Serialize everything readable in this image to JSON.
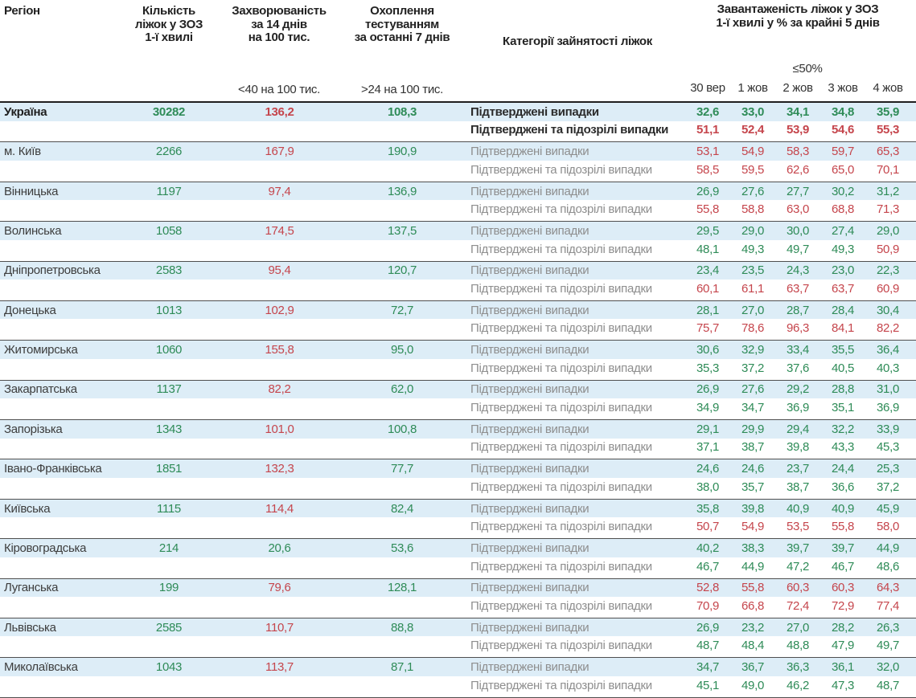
{
  "header": {
    "region": "Регіон",
    "beds_lines": [
      "Кількість",
      "ліжок у ЗОЗ",
      "1-ї хвилі"
    ],
    "incidence_lines": [
      "Захворюваність",
      "за 14 днів",
      "на 100 тис."
    ],
    "testing_lines": [
      "Охоплення",
      "тестуванням",
      "за останні 7 днів"
    ],
    "categories": "Категорії зайнятості ліжок",
    "occupancy_lines": [
      "Завантаженість ліжок у ЗОЗ",
      "1-ї хвилі у % за крайні 5 днів"
    ],
    "incidence_threshold_label": "<40 на 100 тис.",
    "testing_threshold_label": ">24 на 100 тис.",
    "occupancy_threshold_label": "≤50%",
    "dates": [
      "30 вер",
      "1 жов",
      "2 жов",
      "3 жов",
      "4 жов"
    ]
  },
  "row_labels": {
    "confirmed": "Підтверджені випадки",
    "suspected": "Підтверджені та підозрілі випадки"
  },
  "thresholds": {
    "incidence_red": 40,
    "testing_green": 24,
    "occupancy_green": 50
  },
  "colors": {
    "green": "#2e8b57",
    "red": "#c5454c",
    "row_blue": "#ddedf7"
  },
  "rows": [
    {
      "region": "Україна",
      "bold": true,
      "beds": "30282",
      "incidence": "136,2",
      "testing": "108,3",
      "confirmed": [
        "32,6",
        "33,0",
        "34,1",
        "34,8",
        "35,9"
      ],
      "suspected": [
        "51,1",
        "52,4",
        "53,9",
        "54,6",
        "55,3"
      ]
    },
    {
      "region": "м. Київ",
      "bold": false,
      "beds": "2266",
      "incidence": "167,9",
      "testing": "190,9",
      "confirmed": [
        "53,1",
        "54,9",
        "58,3",
        "59,7",
        "65,3"
      ],
      "suspected": [
        "58,5",
        "59,5",
        "62,6",
        "65,0",
        "70,1"
      ]
    },
    {
      "region": "Вінницька",
      "bold": false,
      "beds": "1197",
      "incidence": "97,4",
      "testing": "136,9",
      "confirmed": [
        "26,9",
        "27,6",
        "27,7",
        "30,2",
        "31,2"
      ],
      "suspected": [
        "55,8",
        "58,8",
        "63,0",
        "68,8",
        "71,3"
      ]
    },
    {
      "region": "Волинська",
      "bold": false,
      "beds": "1058",
      "incidence": "174,5",
      "testing": "137,5",
      "confirmed": [
        "29,5",
        "29,0",
        "30,0",
        "27,4",
        "29,0"
      ],
      "suspected": [
        "48,1",
        "49,3",
        "49,7",
        "49,3",
        "50,9"
      ]
    },
    {
      "region": "Дніпропетровська",
      "bold": false,
      "beds": "2583",
      "incidence": "95,4",
      "testing": "120,7",
      "confirmed": [
        "23,4",
        "23,5",
        "24,3",
        "23,0",
        "22,3"
      ],
      "suspected": [
        "60,1",
        "61,1",
        "63,7",
        "63,7",
        "60,9"
      ]
    },
    {
      "region": "Донецька",
      "bold": false,
      "beds": "1013",
      "incidence": "102,9",
      "testing": "72,7",
      "confirmed": [
        "28,1",
        "27,0",
        "28,7",
        "28,4",
        "30,4"
      ],
      "suspected": [
        "75,7",
        "78,6",
        "96,3",
        "84,1",
        "82,2"
      ]
    },
    {
      "region": "Житомирська",
      "bold": false,
      "beds": "1060",
      "incidence": "155,8",
      "testing": "95,0",
      "confirmed": [
        "30,6",
        "32,9",
        "33,4",
        "35,5",
        "36,4"
      ],
      "suspected": [
        "35,3",
        "37,2",
        "37,6",
        "40,5",
        "40,3"
      ]
    },
    {
      "region": "Закарпатська",
      "bold": false,
      "beds": "1137",
      "incidence": "82,2",
      "testing": "62,0",
      "confirmed": [
        "26,9",
        "27,6",
        "29,2",
        "28,8",
        "31,0"
      ],
      "suspected": [
        "34,9",
        "34,7",
        "36,9",
        "35,1",
        "36,9"
      ]
    },
    {
      "region": "Запорізька",
      "bold": false,
      "beds": "1343",
      "incidence": "101,0",
      "testing": "100,8",
      "confirmed": [
        "29,1",
        "29,9",
        "29,4",
        "32,2",
        "33,9"
      ],
      "suspected": [
        "37,1",
        "38,7",
        "39,8",
        "43,3",
        "45,3"
      ]
    },
    {
      "region": "Івано-Франківська",
      "bold": false,
      "beds": "1851",
      "incidence": "132,3",
      "testing": "77,7",
      "confirmed": [
        "24,6",
        "24,6",
        "23,7",
        "24,4",
        "25,3"
      ],
      "suspected": [
        "38,0",
        "35,7",
        "38,7",
        "36,6",
        "37,2"
      ]
    },
    {
      "region": "Київська",
      "bold": false,
      "beds": "1115",
      "incidence": "114,4",
      "testing": "82,4",
      "confirmed": [
        "35,8",
        "39,8",
        "40,9",
        "40,9",
        "45,9"
      ],
      "suspected": [
        "50,7",
        "54,9",
        "53,5",
        "55,8",
        "58,0"
      ]
    },
    {
      "region": "Кіровоградська",
      "bold": false,
      "beds": "214",
      "incidence": "20,6",
      "testing": "53,6",
      "confirmed": [
        "40,2",
        "38,3",
        "39,7",
        "39,7",
        "44,9"
      ],
      "suspected": [
        "46,7",
        "44,9",
        "47,2",
        "46,7",
        "48,6"
      ]
    },
    {
      "region": "Луганська",
      "bold": false,
      "beds": "199",
      "incidence": "79,6",
      "testing": "128,1",
      "confirmed": [
        "52,8",
        "55,8",
        "60,3",
        "60,3",
        "64,3"
      ],
      "suspected": [
        "70,9",
        "66,8",
        "72,4",
        "72,9",
        "77,4"
      ]
    },
    {
      "region": "Львівська",
      "bold": false,
      "beds": "2585",
      "incidence": "110,7",
      "testing": "88,8",
      "confirmed": [
        "26,9",
        "23,2",
        "27,0",
        "28,2",
        "26,3"
      ],
      "suspected": [
        "48,7",
        "48,4",
        "48,8",
        "47,9",
        "49,7"
      ]
    },
    {
      "region": "Миколаївська",
      "bold": false,
      "beds": "1043",
      "incidence": "113,7",
      "testing": "87,1",
      "confirmed": [
        "34,7",
        "36,7",
        "36,3",
        "36,1",
        "32,0"
      ],
      "suspected": [
        "45,1",
        "49,0",
        "46,2",
        "47,3",
        "48,7"
      ]
    }
  ]
}
